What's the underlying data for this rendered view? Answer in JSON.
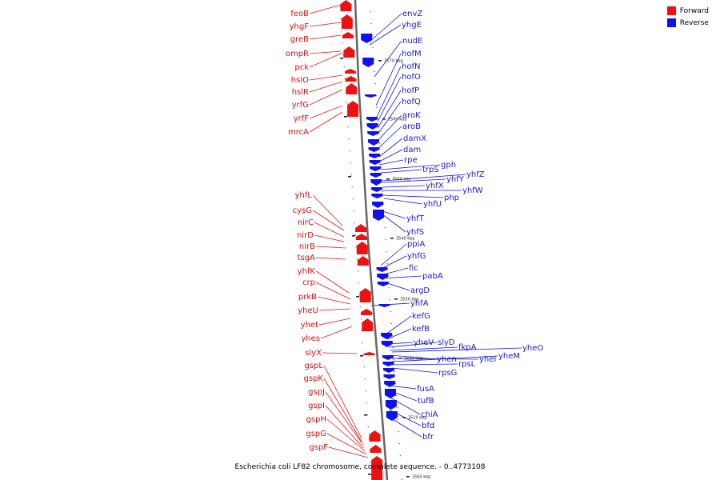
{
  "legend": {
    "forward": {
      "label": "Forward",
      "color": "#ee1111"
    },
    "reverse": {
      "label": "Reverse",
      "color": "#1111ee"
    }
  },
  "caption": "Escherichia coli LF82 chromosome, complete sequence. - 0..4773108",
  "ticks": [
    "3570 kbp",
    "3560 kbp",
    "3550 kbp",
    "3540 kbp",
    "3530 kbp",
    "3520 kbp",
    "3510 kbp",
    "3500 kbp"
  ],
  "forward_genes": [
    "feoB",
    "yhgF",
    "greB",
    "ompR",
    "pck",
    "hslO",
    "hslR",
    "yrfG",
    "yrfF",
    "mrcA",
    "yhfL",
    "cysG",
    "nirC",
    "nirD",
    "nirB",
    "tsgA",
    "yhfK",
    "crp",
    "prkB",
    "yheU",
    "yhet",
    "yhes",
    "slyX",
    "gspL",
    "gspK",
    "gspJ",
    "gspI",
    "gspH",
    "gspG",
    "gspF"
  ],
  "reverse_genes": [
    "envZ",
    "yhgE",
    "nudE",
    "hofM",
    "hofN",
    "hofO",
    "hofP",
    "hofQ",
    "aroK",
    "aroB",
    "damX",
    "dam",
    "rpe",
    "gph",
    "trpS",
    "yhfZ",
    "yhfY",
    "yhfX",
    "yhfW",
    "php",
    "yhfU",
    "yhfT",
    "yhfS",
    "ppiA",
    "yhfG",
    "fic",
    "pabA",
    "argD",
    "yhfA",
    "kefG",
    "kefB",
    "yheV",
    "slyD",
    "fkpA",
    "yheO",
    "yhen",
    "yheI",
    "yheM",
    "rpsL",
    "rpsG",
    "fusA",
    "tufB",
    "chiA",
    "bfd",
    "bfr"
  ]
}
